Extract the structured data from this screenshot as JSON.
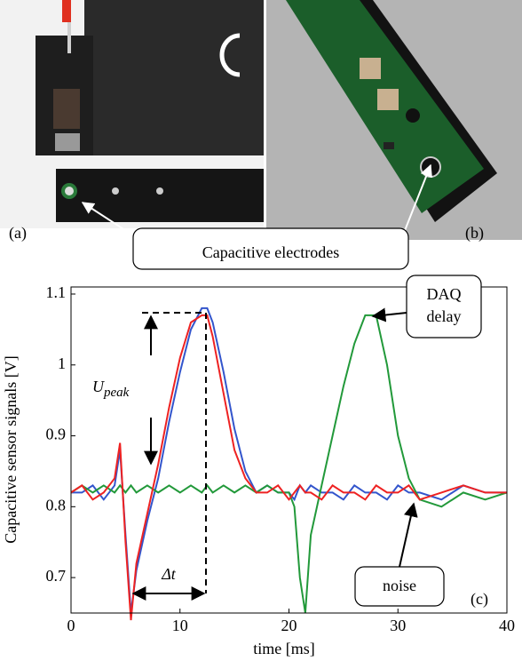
{
  "photos": {
    "panel_labels": [
      "(a)",
      "(b)"
    ],
    "callout": "Capacitive electrodes"
  },
  "chart_data": {
    "type": "line",
    "xlabel": "time [ms]",
    "ylabel": "Capacitive sensor signals [V]",
    "x": [
      0,
      1,
      2,
      3,
      4,
      4.5,
      5,
      5.5,
      6,
      7,
      8,
      9,
      10,
      11,
      12,
      12.5,
      13,
      14,
      15,
      16,
      17,
      18,
      19,
      20,
      20.5,
      21,
      21.5,
      22,
      23,
      24,
      25,
      26,
      27,
      28,
      29,
      30,
      31,
      32,
      34,
      36,
      38,
      40
    ],
    "series": [
      {
        "color": "#3355cc",
        "values": [
          0.82,
          0.82,
          0.83,
          0.81,
          0.83,
          0.88,
          0.76,
          0.65,
          0.71,
          0.78,
          0.84,
          0.92,
          0.99,
          1.05,
          1.08,
          1.08,
          1.06,
          0.99,
          0.91,
          0.85,
          0.82,
          0.83,
          0.82,
          0.82,
          0.81,
          0.83,
          0.82,
          0.83,
          0.82,
          0.82,
          0.81,
          0.83,
          0.82,
          0.82,
          0.81,
          0.83,
          0.82,
          0.82,
          0.81,
          0.83,
          0.82,
          0.82
        ]
      },
      {
        "color": "#22993a",
        "values": [
          0.82,
          0.83,
          0.82,
          0.83,
          0.82,
          0.83,
          0.82,
          0.83,
          0.82,
          0.83,
          0.82,
          0.83,
          0.82,
          0.83,
          0.82,
          0.83,
          0.82,
          0.83,
          0.82,
          0.83,
          0.82,
          0.83,
          0.82,
          0.82,
          0.8,
          0.7,
          0.65,
          0.76,
          0.83,
          0.9,
          0.97,
          1.03,
          1.07,
          1.07,
          1.0,
          0.9,
          0.84,
          0.81,
          0.8,
          0.82,
          0.81,
          0.82
        ]
      },
      {
        "color": "#ee2222",
        "values": [
          0.82,
          0.83,
          0.81,
          0.82,
          0.84,
          0.89,
          0.75,
          0.64,
          0.72,
          0.79,
          0.86,
          0.94,
          1.01,
          1.06,
          1.07,
          1.07,
          1.04,
          0.96,
          0.88,
          0.84,
          0.82,
          0.82,
          0.83,
          0.81,
          0.82,
          0.83,
          0.82,
          0.82,
          0.81,
          0.83,
          0.82,
          0.82,
          0.81,
          0.83,
          0.82,
          0.82,
          0.83,
          0.81,
          0.82,
          0.83,
          0.82,
          0.82
        ]
      }
    ],
    "xlim": [
      0,
      40
    ],
    "ylim": [
      0.65,
      1.11
    ],
    "xticks": [
      0,
      10,
      20,
      30,
      40
    ],
    "yticks": [
      0.7,
      0.8,
      0.9,
      1,
      1.1
    ],
    "annotations": {
      "daq": [
        "DAQ",
        "delay"
      ],
      "noise": "noise",
      "panel": "(c)",
      "upeak": {
        "base": "U",
        "sub": "peak"
      },
      "dt": "Δt"
    }
  }
}
